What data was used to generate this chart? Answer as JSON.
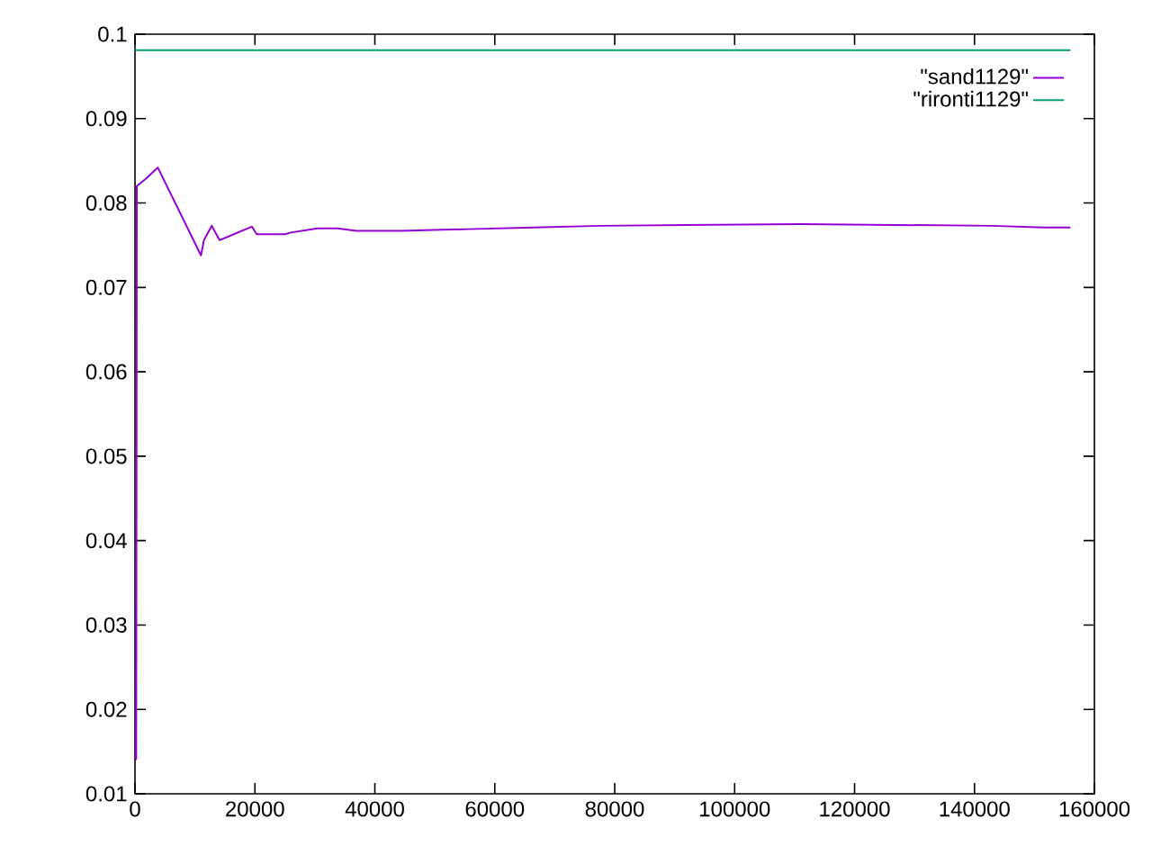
{
  "chart_data": {
    "type": "line",
    "xlim": [
      0,
      160000
    ],
    "ylim": [
      0.01,
      0.1
    ],
    "xticks": [
      0,
      20000,
      40000,
      60000,
      80000,
      100000,
      120000,
      140000,
      160000
    ],
    "yticks": [
      0.01,
      0.02,
      0.03,
      0.04,
      0.05,
      0.06,
      0.07,
      0.08,
      0.09,
      0.1
    ],
    "legend": "top right",
    "grid": false,
    "marker": "none",
    "line_style": "solid",
    "series": [
      {
        "name": "\"sand1129\"",
        "color": "#9400d3",
        "x": [
          0,
          200,
          300,
          1700,
          3800,
          11000,
          11500,
          12800,
          14100,
          19500,
          20300,
          25000,
          26000,
          30500,
          33800,
          36900,
          44300,
          55500,
          66500,
          77700,
          111000,
          143000,
          151500,
          156000
        ],
        "values": [
          0.0141,
          0.0141,
          0.082,
          0.0828,
          0.0842,
          0.0738,
          0.0756,
          0.0773,
          0.0756,
          0.0772,
          0.0763,
          0.0763,
          0.0765,
          0.077,
          0.077,
          0.0767,
          0.0767,
          0.0769,
          0.0771,
          0.0773,
          0.0775,
          0.0773,
          0.0771,
          0.0771
        ]
      },
      {
        "name": "\"rironti1129\"",
        "color": "#009e73",
        "x": [
          0,
          156000
        ],
        "values": [
          0.0981,
          0.0981
        ]
      }
    ]
  }
}
